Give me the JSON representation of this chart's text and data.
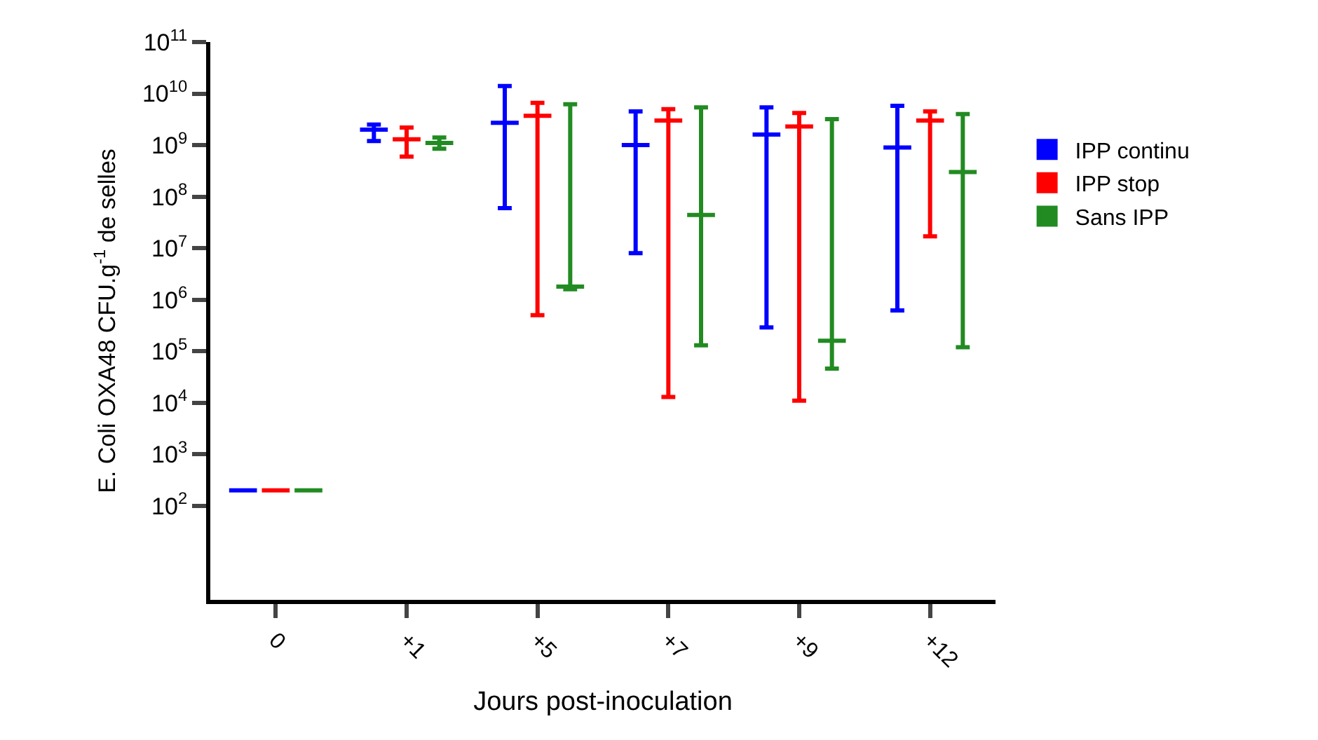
{
  "chart_data": {
    "type": "box",
    "xlabel": "Jours post-inoculation",
    "ylabel": "E. Coli OXA48 CFU.g$^{-1}$ de selles",
    "categories": [
      "0",
      "+1",
      "+5",
      "+7",
      "+9",
      "+12"
    ],
    "log": "y",
    "ylim": [
      1.5,
      100000000000.0
    ],
    "yticks": [
      {
        "value": 100.0,
        "label": "10$^{2}$"
      },
      {
        "value": 1000.0,
        "label": "10$^{3}$"
      },
      {
        "value": 10000.0,
        "label": "10$^{4}$"
      },
      {
        "value": 100000.0,
        "label": "10$^{5}$"
      },
      {
        "value": 1000000.0,
        "label": "10$^{6}$"
      },
      {
        "value": 10000000.0,
        "label": "10$^{7}$"
      },
      {
        "value": 100000000.0,
        "label": "10$^{8}$"
      },
      {
        "value": 1000000000.0,
        "label": "10$^{9}$"
      },
      {
        "value": 10000000000.0,
        "label": "10$^{10}$"
      },
      {
        "value": 100000000000.0,
        "label": "10$^{11}$"
      }
    ],
    "legend": "right",
    "series": [
      {
        "name": "IPP continu",
        "color": "#0000ff",
        "boxes": [
          {
            "low": 200,
            "q1": 200,
            "median": 200,
            "q3": 200,
            "high": 200
          },
          {
            "low": 1200000000.0,
            "q1": 2000000000.0,
            "median": 2000000000.0,
            "q3": 2000000000.0,
            "high": 2500000000.0
          },
          {
            "low": 60000000.0,
            "q1": 2700000000.0,
            "median": 2700000000.0,
            "q3": 2700000000.0,
            "high": 14000000000.0
          },
          {
            "low": 8000000.0,
            "q1": 1000000000.0,
            "median": 1000000000.0,
            "q3": 1000000000.0,
            "high": 4500000000.0
          },
          {
            "low": 290000.0,
            "q1": 1600000000.0,
            "median": 1600000000.0,
            "q3": 1600000000.0,
            "high": 5400000000.0
          },
          {
            "low": 620000.0,
            "q1": 900000000.0,
            "median": 900000000.0,
            "q3": 900000000.0,
            "high": 5800000000.0
          }
        ]
      },
      {
        "name": "IPP stop",
        "color": "#ff0000",
        "boxes": [
          {
            "low": 200,
            "q1": 200,
            "median": 200,
            "q3": 200,
            "high": 200
          },
          {
            "low": 600000000.0,
            "q1": 1300000000.0,
            "median": 1300000000.0,
            "q3": 1300000000.0,
            "high": 2200000000.0
          },
          {
            "low": 500000.0,
            "q1": 3700000000.0,
            "median": 3700000000.0,
            "q3": 3700000000.0,
            "high": 6600000000.0
          },
          {
            "low": 13000.0,
            "q1": 3000000000.0,
            "median": 3000000000.0,
            "q3": 3000000000.0,
            "high": 5000000000.0
          },
          {
            "low": 11000.0,
            "q1": 2300000000.0,
            "median": 2300000000.0,
            "q3": 2300000000.0,
            "high": 4200000000.0
          },
          {
            "low": 17000000.0,
            "q1": 3000000000.0,
            "median": 3000000000.0,
            "q3": 3000000000.0,
            "high": 4500000000.0
          }
        ]
      },
      {
        "name": "Sans IPP",
        "color": "#228b22",
        "boxes": [
          {
            "low": 200,
            "q1": 200,
            "median": 200,
            "q3": 200,
            "high": 200
          },
          {
            "low": 850000000.0,
            "q1": 1100000000.0,
            "median": 1100000000.0,
            "q3": 1100000000.0,
            "high": 1400000000.0
          },
          {
            "low": 1600000.0,
            "q1": 1800000.0,
            "median": 1800000.0,
            "q3": 1800000.0,
            "high": 6200000000.0
          },
          {
            "low": 130000.0,
            "q1": 44000000.0,
            "median": 44000000.0,
            "q3": 44000000.0,
            "high": 5400000000.0
          },
          {
            "low": 46000.0,
            "q1": 160000.0,
            "median": 160000.0,
            "q3": 160000.0,
            "high": 3200000000.0
          },
          {
            "low": 120000.0,
            "q1": 300000000.0,
            "median": 300000000.0,
            "q3": 300000000.0,
            "high": 4000000000.0
          }
        ]
      }
    ]
  }
}
